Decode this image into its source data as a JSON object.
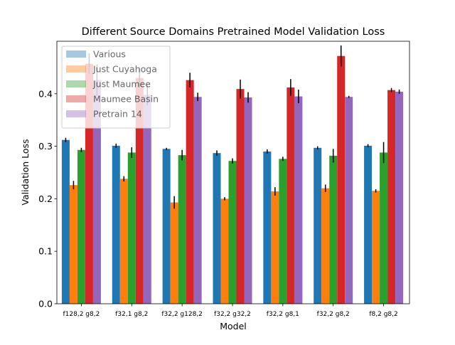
{
  "chart_data": {
    "type": "bar",
    "title": "Different Source Domains Pretrained Model Validation Loss",
    "xlabel": "Model",
    "ylabel": "Validation Loss",
    "ylim": [
      0.0,
      0.5
    ],
    "yticks": [
      0.0,
      0.1,
      0.2,
      0.3,
      0.4
    ],
    "ytick_labels": [
      "0.0",
      "0.1",
      "0.2",
      "0.3",
      "0.4"
    ],
    "categories": [
      "f128,2 g8,2",
      "f32,1 g8,2",
      "f32,2 g128,2",
      "f32,2 g32,2",
      "f32,2 g8,1",
      "f32,2 g8,2",
      "f8,2 g8,2"
    ],
    "series": [
      {
        "name": "Various",
        "color": "#1f77b4",
        "values": [
          0.312,
          0.301,
          0.295,
          0.287,
          0.29,
          0.297,
          0.301
        ],
        "errors": [
          0.004,
          0.004,
          0.002,
          0.005,
          0.004,
          0.003,
          0.003
        ]
      },
      {
        "name": "Just Cuyahoga",
        "color": "#ff7f0e",
        "values": [
          0.226,
          0.238,
          0.193,
          0.2,
          0.214,
          0.22,
          0.215
        ],
        "errors": [
          0.008,
          0.005,
          0.012,
          0.003,
          0.008,
          0.007,
          0.003
        ]
      },
      {
        "name": "Just Maumee",
        "color": "#2ca02c",
        "values": [
          0.293,
          0.288,
          0.283,
          0.272,
          0.276,
          0.282,
          0.288
        ],
        "errors": [
          0.004,
          0.01,
          0.01,
          0.005,
          0.004,
          0.013,
          0.02
        ]
      },
      {
        "name": "Maumee Basin",
        "color": "#d62728",
        "values": [
          0.457,
          0.43,
          0.426,
          0.409,
          0.412,
          0.472,
          0.407
        ],
        "errors": [
          0.02,
          0.018,
          0.014,
          0.018,
          0.016,
          0.02,
          0.004
        ]
      },
      {
        "name": "Pretrain 14",
        "color": "#9467bd",
        "values": [
          0.426,
          0.398,
          0.394,
          0.393,
          0.395,
          0.394,
          0.404
        ],
        "errors": [
          0.03,
          0.02,
          0.008,
          0.01,
          0.013,
          0.002,
          0.004
        ]
      }
    ],
    "legend_position": "upper-left",
    "grid": false
  }
}
